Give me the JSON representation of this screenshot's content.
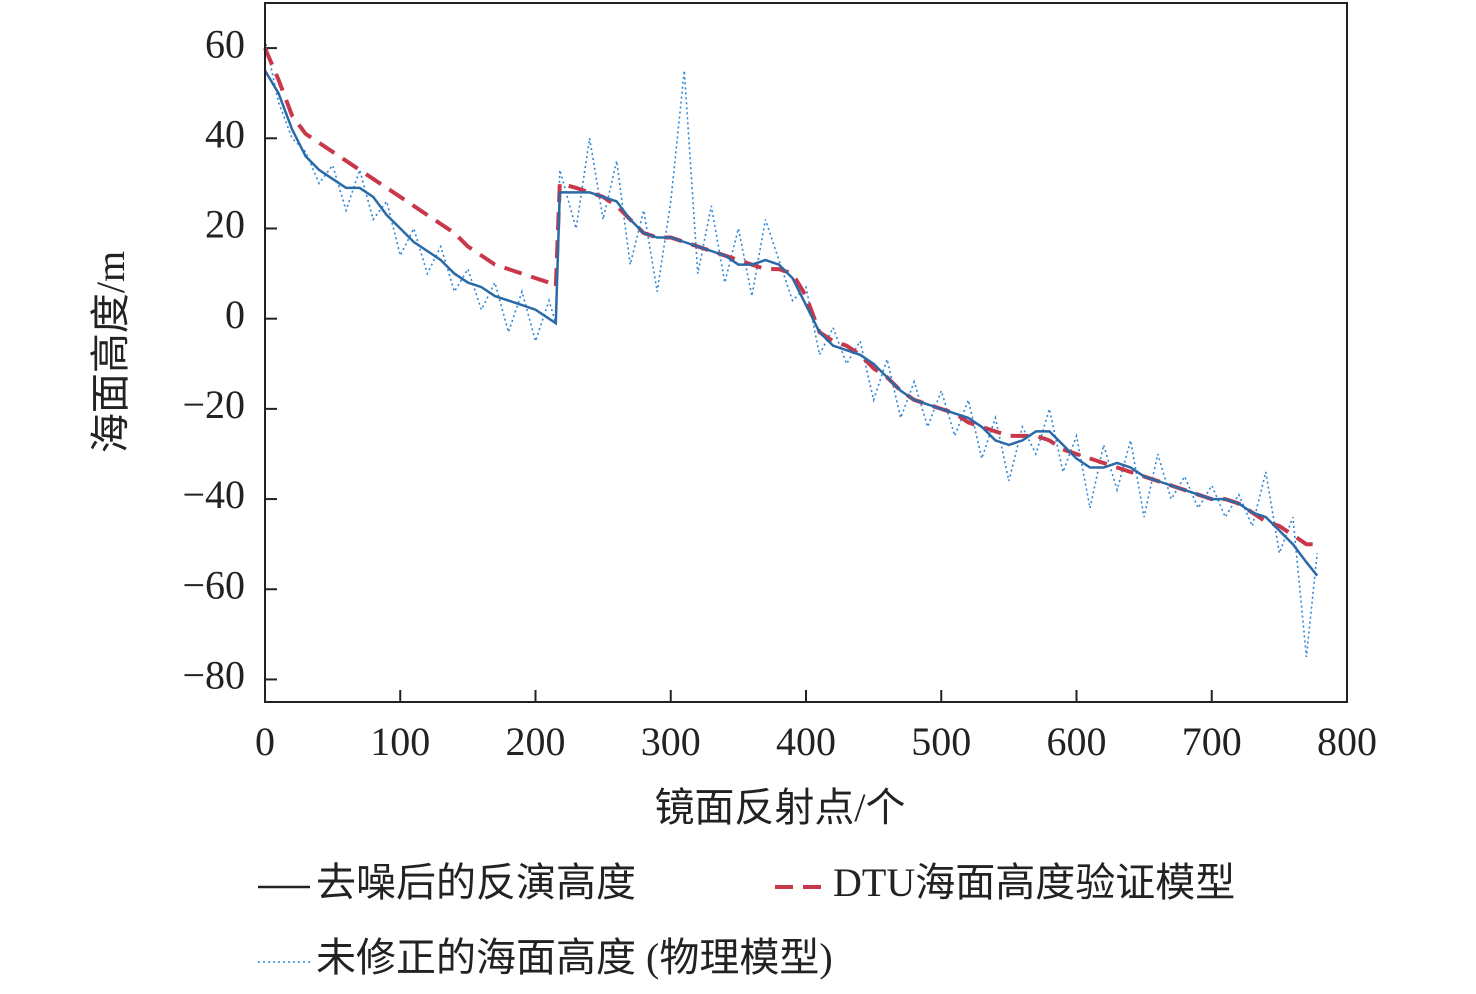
{
  "chart_data": {
    "type": "line",
    "xlabel": "镜面反射点/个",
    "ylabel": "海面高度/m",
    "x": [
      0,
      10,
      20,
      30,
      40,
      50,
      60,
      70,
      80,
      90,
      100,
      110,
      120,
      130,
      140,
      150,
      160,
      170,
      180,
      190,
      200,
      210,
      215,
      218,
      230,
      240,
      250,
      260,
      270,
      280,
      290,
      300,
      310,
      320,
      330,
      340,
      350,
      360,
      370,
      380,
      390,
      400,
      410,
      420,
      430,
      440,
      450,
      460,
      470,
      480,
      490,
      500,
      510,
      520,
      530,
      540,
      550,
      560,
      570,
      580,
      590,
      600,
      610,
      620,
      630,
      640,
      650,
      660,
      670,
      680,
      690,
      700,
      710,
      720,
      730,
      740,
      750,
      760,
      770,
      778
    ],
    "series": [
      {
        "name": "去噪后的反演高度",
        "color": "#2a6aa6",
        "dash": "solid",
        "values": [
          55,
          50,
          42,
          36,
          33,
          31,
          29,
          29,
          27,
          23,
          20,
          17,
          15,
          13,
          10,
          8,
          7,
          5,
          4,
          3,
          2,
          0,
          -1,
          28,
          28,
          28,
          27,
          26,
          22,
          19,
          18,
          18,
          17,
          16,
          15,
          14,
          12,
          12,
          13,
          12,
          9,
          3,
          -3,
          -6,
          -7,
          -8,
          -10,
          -13,
          -16,
          -18,
          -19,
          -20,
          -21,
          -22,
          -24,
          -27,
          -28,
          -27,
          -25,
          -25,
          -28,
          -31,
          -33,
          -33,
          -32,
          -33,
          -35,
          -36,
          -37,
          -38,
          -39,
          -40,
          -40,
          -41,
          -43,
          -44,
          -47,
          -50,
          -54,
          -57
        ]
      },
      {
        "name": "DTU海面高度验证模型",
        "color": "#c8384a",
        "dash": "dashed",
        "values": [
          60,
          53,
          45,
          41,
          39,
          37,
          35,
          33,
          31,
          29,
          27,
          25,
          23,
          21,
          19,
          16,
          14,
          12,
          11,
          10,
          9,
          8,
          7,
          30,
          29,
          28,
          27,
          25,
          22,
          19,
          18,
          18,
          17,
          16,
          15,
          14,
          13,
          12,
          11,
          11,
          10,
          5,
          -3,
          -5,
          -6,
          -8,
          -11,
          -13,
          -16,
          -18,
          -19,
          -20,
          -21,
          -23,
          -24,
          -25,
          -26,
          -26,
          -26,
          -27,
          -29,
          -30,
          -31,
          -32,
          -33,
          -34,
          -35,
          -36,
          -37,
          -38,
          -39,
          -40,
          -40,
          -41,
          -43,
          -45,
          -46,
          -48,
          -50,
          -50
        ]
      },
      {
        "name": "未修正的海面高度 (物理模型)",
        "color": "#2f86d6",
        "dash": "dotted",
        "values": [
          62,
          48,
          40,
          37,
          30,
          34,
          24,
          33,
          22,
          26,
          14,
          20,
          10,
          16,
          6,
          11,
          2,
          8,
          -3,
          6,
          -5,
          4,
          -1,
          33,
          20,
          40,
          22,
          35,
          12,
          24,
          6,
          26,
          55,
          10,
          25,
          8,
          20,
          5,
          22,
          13,
          4,
          7,
          -8,
          -2,
          -10,
          -5,
          -18,
          -9,
          -22,
          -14,
          -24,
          -16,
          -26,
          -18,
          -31,
          -22,
          -36,
          -24,
          -30,
          -20,
          -34,
          -26,
          -42,
          -28,
          -38,
          -27,
          -44,
          -30,
          -40,
          -35,
          -42,
          -37,
          -44,
          -39,
          -46,
          -34,
          -52,
          -44,
          -75,
          -52
        ]
      }
    ],
    "xlim": [
      0,
      800
    ],
    "xticks": [
      0,
      100,
      200,
      300,
      400,
      500,
      600,
      700,
      800
    ],
    "ylim": [
      -85,
      70
    ],
    "yticks": [
      {
        "value": -80,
        "label": "−80"
      },
      {
        "value": -60,
        "label": "−60"
      },
      {
        "value": -40,
        "label": "−40"
      },
      {
        "value": -20,
        "label": "−20"
      },
      0,
      20,
      40,
      60
    ],
    "legend": "bottom"
  }
}
